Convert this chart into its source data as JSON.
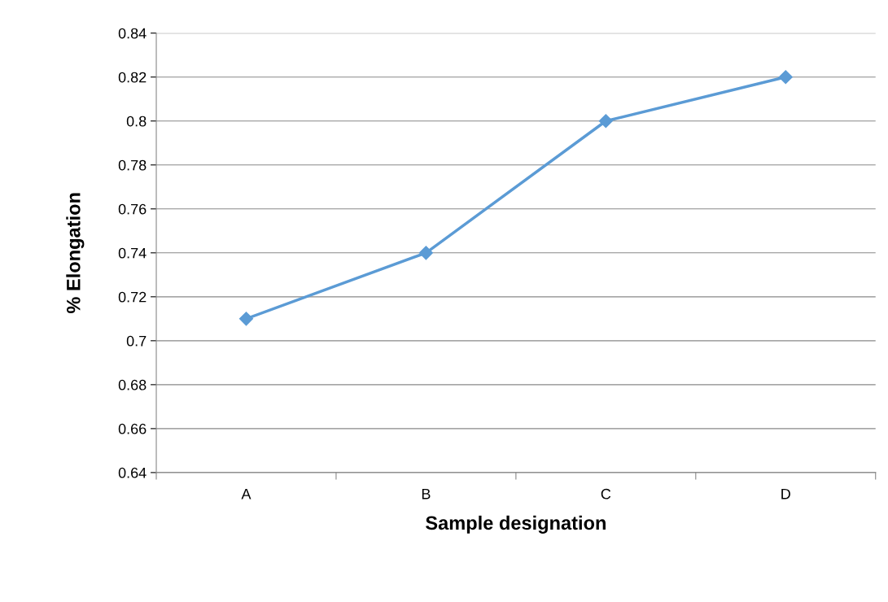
{
  "chart_data": {
    "type": "line",
    "xlabel": "Sample designation",
    "ylabel": "% Elongation",
    "categories": [
      "A",
      "B",
      "C",
      "D"
    ],
    "series": [
      {
        "color": "#5b9bd5",
        "values": [
          0.71,
          0.74,
          0.8,
          0.82
        ]
      }
    ],
    "ylim": [
      0.64,
      0.84
    ],
    "yticks": [
      0.64,
      0.66,
      0.68,
      0.7,
      0.72,
      0.74,
      0.76,
      0.78,
      0.8,
      0.82,
      0.84
    ],
    "grid": "y",
    "marker": "diamond",
    "line_style": "solid"
  }
}
